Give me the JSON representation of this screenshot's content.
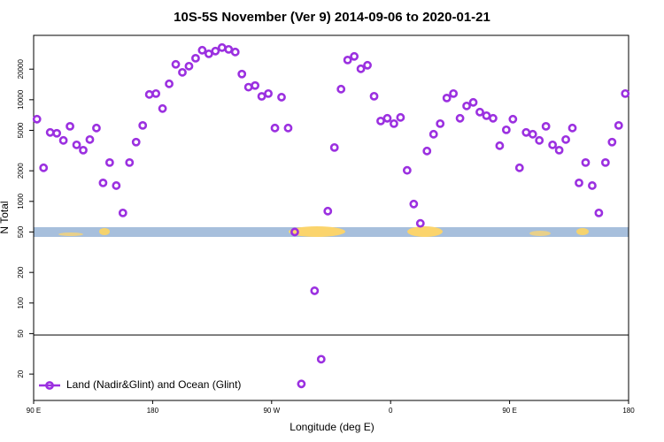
{
  "chart_data": {
    "type": "scatter",
    "title": "10S-5S November (Ver 9)   2014-09-06 to 2020-01-21",
    "xlabel": "Longitude (deg E)",
    "ylabel": "N Total",
    "log_y": true,
    "legend": "lower left",
    "xlim": [
      90,
      540
    ],
    "ylim": [
      11,
      43000
    ],
    "xticks": [
      {
        "value": 90,
        "label": "90 E"
      },
      {
        "value": 180,
        "label": "180"
      },
      {
        "value": 270,
        "label": "90 W"
      },
      {
        "value": 360,
        "label": "0"
      },
      {
        "value": 450,
        "label": "90 E"
      },
      {
        "value": 540,
        "label": "180"
      }
    ],
    "yticks": [
      20,
      50,
      100,
      200,
      500,
      1000,
      2000,
      5000,
      10000,
      20000
    ],
    "x": [
      92.5,
      97.5,
      102.5,
      107.5,
      112.5,
      117.5,
      122.5,
      127.5,
      132.5,
      137.5,
      142.5,
      147.5,
      152.5,
      157.5,
      162.5,
      167.5,
      172.5,
      177.5,
      182.5,
      187.5,
      192.5,
      197.5,
      202.5,
      207.5,
      212.5,
      217.5,
      222.5,
      227.5,
      232.5,
      237.5,
      242.5,
      247.5,
      252.5,
      257.5,
      262.5,
      267.5,
      272.5,
      277.5,
      282.5,
      287.5,
      292.5,
      302.5,
      307.5,
      312.5,
      317.5,
      322.5,
      327.5,
      332.5,
      337.5,
      342.5,
      347.5,
      352.5,
      357.5,
      362.5,
      367.5,
      372.5,
      377.5,
      382.5,
      387.5,
      392.5,
      397.5,
      402.5,
      407.5,
      412.5,
      417.5,
      422.5,
      427.5,
      432.5,
      437.5,
      442.5,
      447.5,
      452.5,
      457.5,
      462.5,
      467.5,
      472.5,
      477.5,
      482.5,
      487.5,
      492.5,
      497.5,
      502.5,
      507.5,
      512.5,
      517.5,
      522.5,
      527.5,
      532.5,
      537.5
    ],
    "series": [
      {
        "name": "Land (Nadir&Glint) and Ocean (Glint)",
        "color": "#9b30e0",
        "values": [
          6440,
          2140,
          4770,
          4680,
          3980,
          5480,
          3600,
          3190,
          4060,
          5270,
          1520,
          2410,
          1430,
          770,
          2410,
          3830,
          5590,
          11280,
          11500,
          8190,
          14340,
          22300,
          18600,
          21400,
          25600,
          30700,
          28300,
          30100,
          32600,
          31300,
          29500,
          17900,
          13300,
          13800,
          10800,
          11500,
          5270,
          10600,
          5270,
          500,
          16,
          132,
          28,
          802,
          3390,
          12720,
          24600,
          26700,
          20160,
          21850,
          10830,
          6180,
          6570,
          5820,
          6700,
          2020,
          942,
          608,
          3130,
          4580,
          5820,
          10400,
          11500,
          6570,
          8690,
          9420,
          7560,
          6970,
          6570,
          3530,
          5060,
          6440,
          2140,
          4770,
          4580,
          3980,
          5480,
          3600,
          3190,
          4060,
          5270,
          1520,
          2410,
          1430,
          770,
          2410,
          3830,
          5590,
          11500
        ]
      }
    ]
  }
}
